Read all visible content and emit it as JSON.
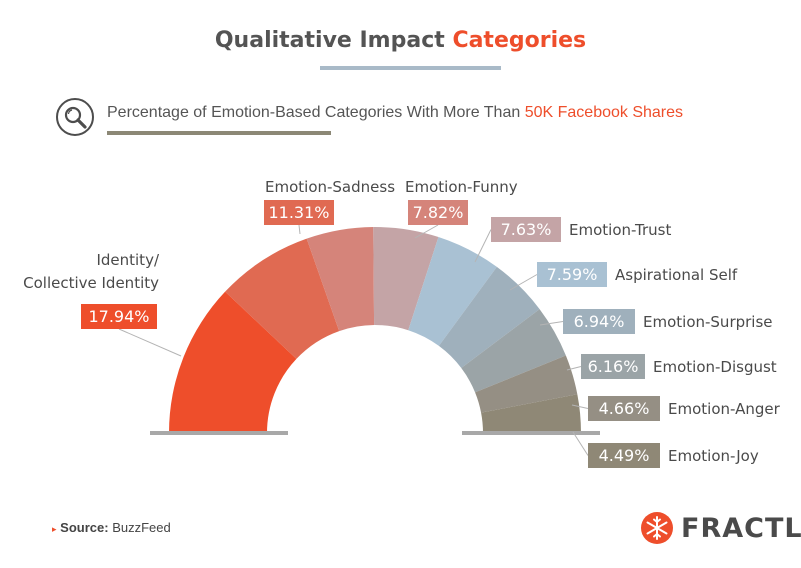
{
  "header": {
    "title_main": "Qualitative Impact",
    "title_accent": "Categories",
    "subtitle_main": "Percentage of Emotion-Based Categories With More Than",
    "subtitle_accent": "50K Facebook Shares"
  },
  "colors": {
    "accent": "#ee4e2b",
    "title_rule": "#a9bac8",
    "sub_rule": "#8c8876",
    "base_line": "#a8a8a8"
  },
  "chart_data": {
    "type": "pie",
    "variant": "half-donut",
    "title": "Qualitative Impact Categories",
    "subtitle": "Percentage of Emotion-Based Categories With More Than 50K Facebook Shares",
    "unit": "%",
    "slices": [
      {
        "label_lines": [
          "Identity/",
          "Collective Identity"
        ],
        "label": "Identity/ Collective Identity",
        "value": 17.94,
        "value_text": "17.94%",
        "color": "#ee4e2b"
      },
      {
        "label_lines": [
          "Emotion-Sadness"
        ],
        "label": "Emotion-Sadness",
        "value": 11.31,
        "value_text": "11.31%",
        "color": "#e06a52"
      },
      {
        "label_lines": [
          "Emotion-Funny"
        ],
        "label": "Emotion-Funny",
        "value": 7.82,
        "value_text": "7.82%",
        "color": "#d5847a"
      },
      {
        "label_lines": [
          "Emotion-Trust"
        ],
        "label": "Emotion-Trust",
        "value": 7.63,
        "value_text": "7.63%",
        "color": "#c4a4a6"
      },
      {
        "label_lines": [
          "Aspirational Self"
        ],
        "label": "Aspirational Self",
        "value": 7.59,
        "value_text": "7.59%",
        "color": "#a9c1d3"
      },
      {
        "label_lines": [
          "Emotion-Surprise"
        ],
        "label": "Emotion-Surprise",
        "value": 6.94,
        "value_text": "6.94%",
        "color": "#9fb0bc"
      },
      {
        "label_lines": [
          "Emotion-Disgust"
        ],
        "label": "Emotion-Disgust",
        "value": 6.16,
        "value_text": "6.16%",
        "color": "#9ba4a7"
      },
      {
        "label_lines": [
          "Emotion-Anger"
        ],
        "label": "Emotion-Anger",
        "value": 4.66,
        "value_text": "4.66%",
        "color": "#958f84"
      },
      {
        "label_lines": [
          "Emotion-Joy"
        ],
        "label": "Emotion-Joy",
        "value": 4.49,
        "value_text": "4.49%",
        "color": "#8f8876"
      }
    ]
  },
  "footer": {
    "source_label": "Source:",
    "source_value": "BuzzFeed",
    "source_marker": "▸",
    "brand": "FRACTL",
    "brand_icon": "snowflake-icon"
  }
}
